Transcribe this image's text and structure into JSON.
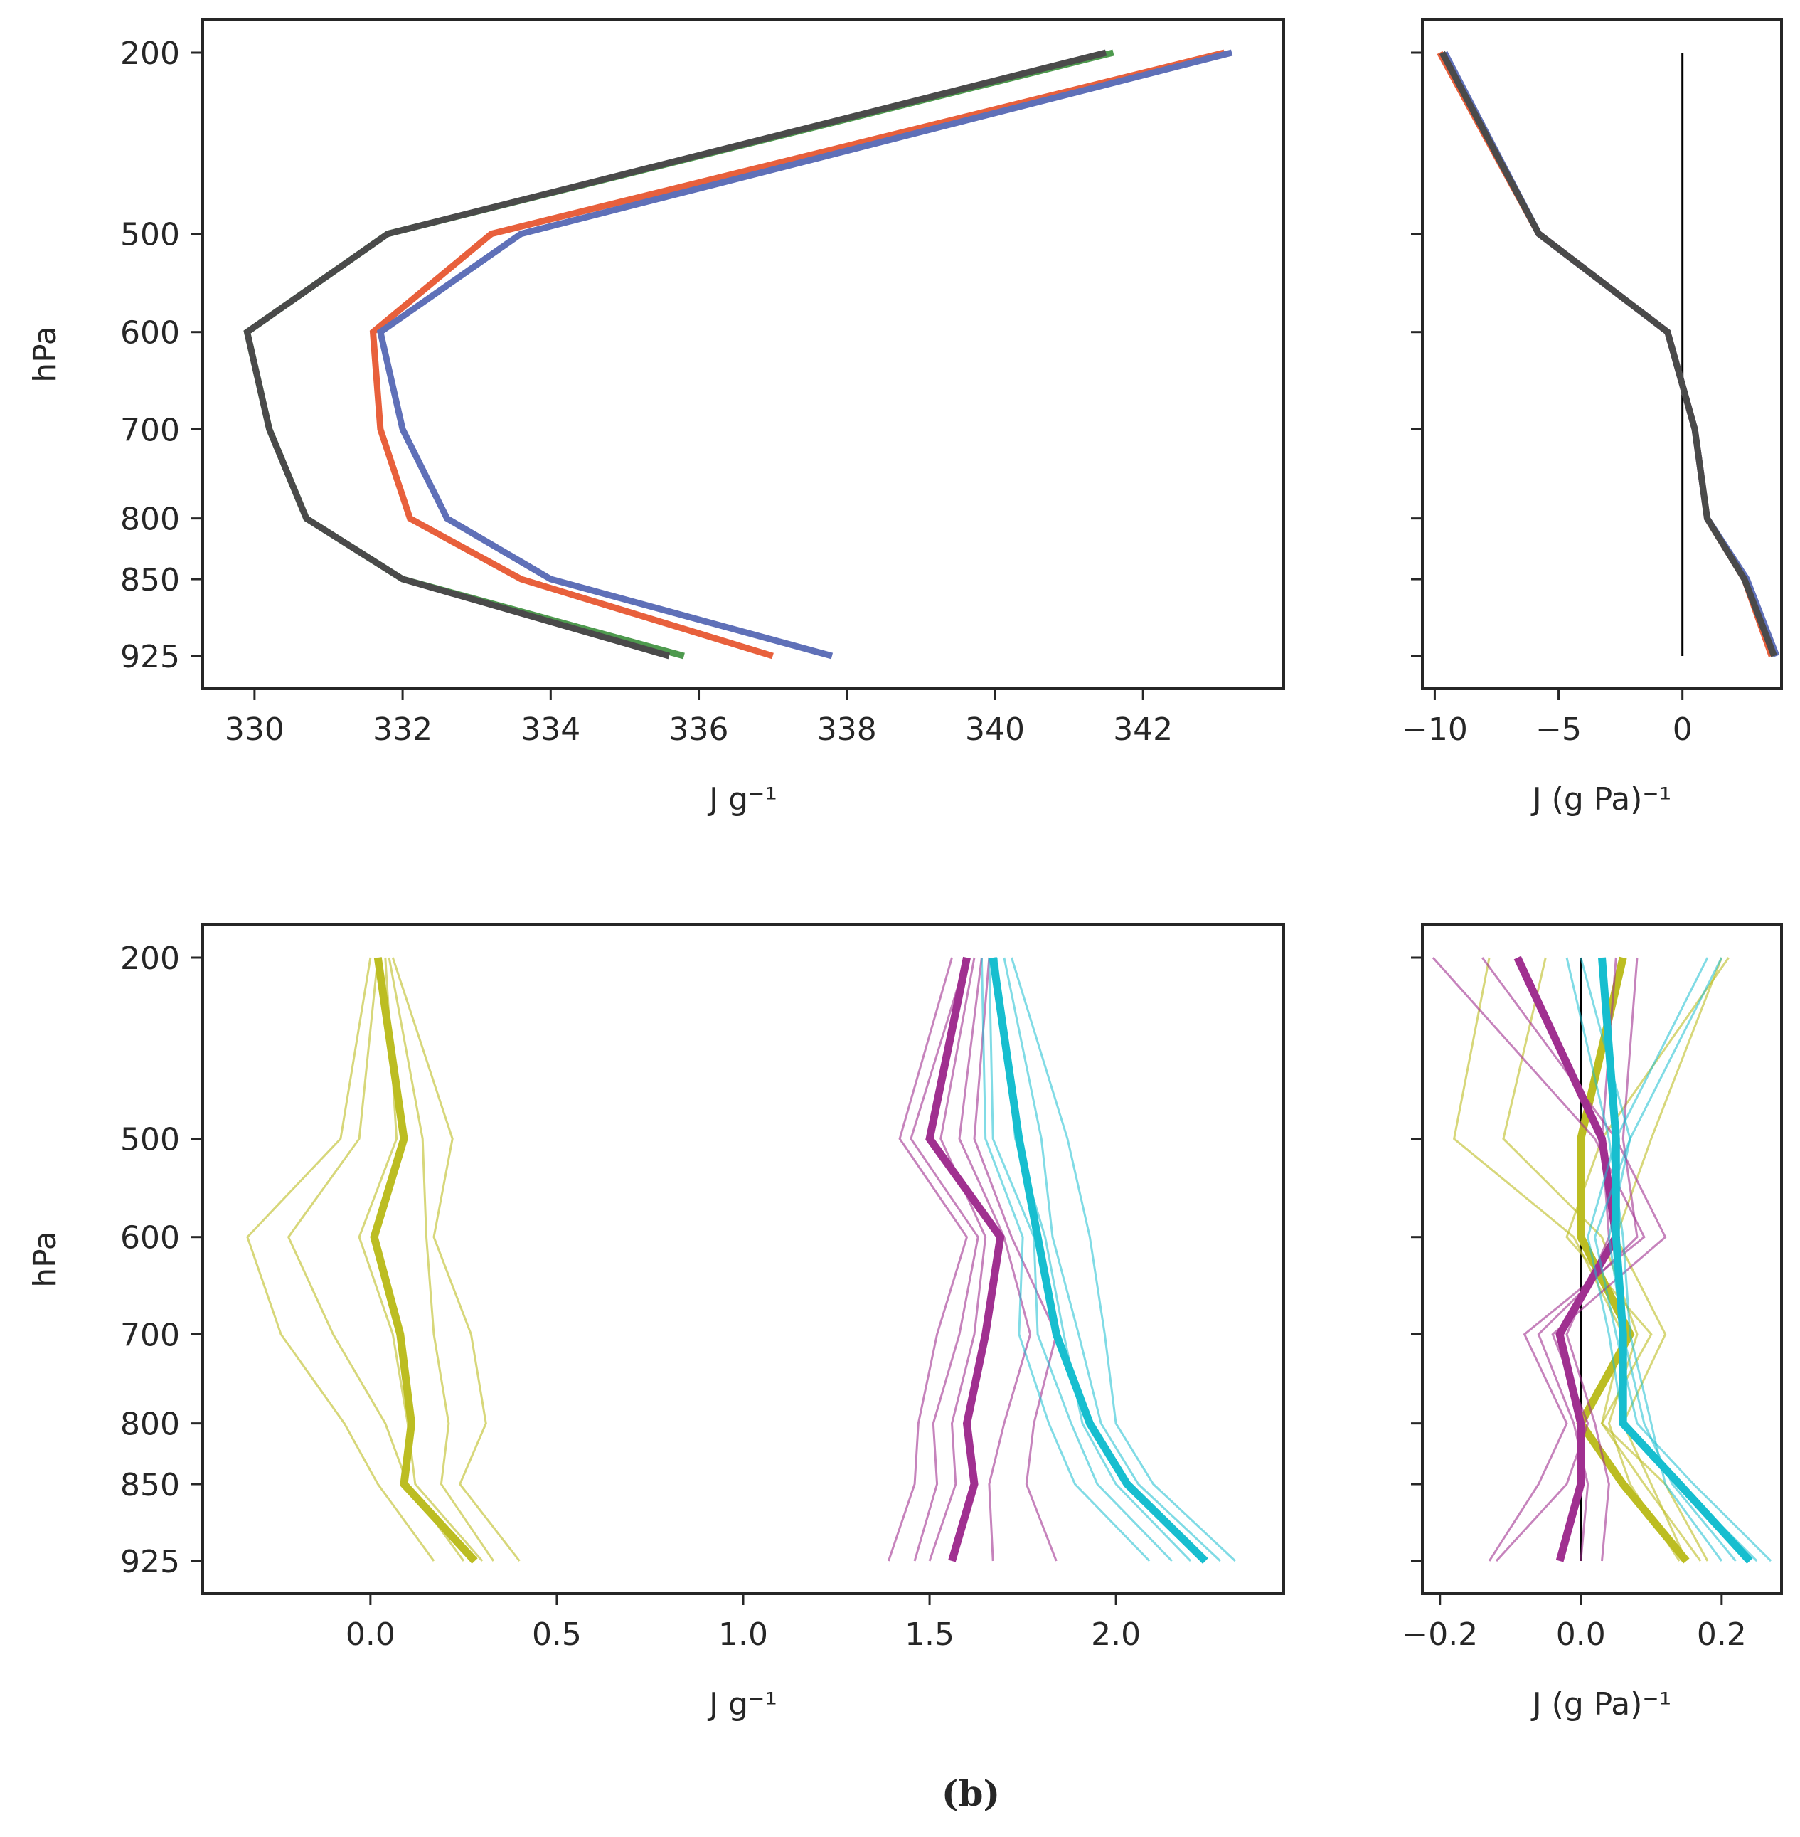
{
  "caption": "(b)",
  "colors": {
    "red": "#e8603c",
    "blue": "#5f70b8",
    "green": "#4e9a4e",
    "darkgray": "#4a4a4a",
    "yellow": "#bcbd22",
    "magenta": "#a03090",
    "cyan": "#17becf",
    "axis": "#262626"
  },
  "chart_data": [
    {
      "id": "top_left",
      "type": "line",
      "ylabel": "hPa",
      "xlabel": "J g⁻¹",
      "xlim": [
        329.3,
        343.9
      ],
      "ylim": [
        925,
        200
      ],
      "xticks": [
        330,
        332,
        334,
        336,
        338,
        340,
        342
      ],
      "xtick_labels": [
        "330",
        "332",
        "334",
        "336",
        "338",
        "340",
        "342"
      ],
      "yticks": [
        200,
        500,
        600,
        700,
        800,
        850,
        925
      ],
      "ytick_labels": [
        "200",
        "500",
        "600",
        "700",
        "800",
        "850",
        "925"
      ],
      "levels": [
        200,
        500,
        600,
        700,
        800,
        850,
        925
      ],
      "series": [
        {
          "name": "red",
          "color": "#e8603c",
          "width": 9,
          "values": [
            343.1,
            333.2,
            331.6,
            331.7,
            332.1,
            333.6,
            337.0
          ]
        },
        {
          "name": "blue",
          "color": "#5f70b8",
          "width": 9,
          "values": [
            343.2,
            333.6,
            331.7,
            332.0,
            332.6,
            334.0,
            337.8
          ]
        },
        {
          "name": "green",
          "color": "#4e9a4e",
          "width": 9,
          "values": [
            341.6,
            331.8,
            329.9,
            330.2,
            330.7,
            332.0,
            335.8
          ]
        },
        {
          "name": "darkgray",
          "color": "#4a4a4a",
          "width": 9,
          "values": [
            341.5,
            331.8,
            329.9,
            330.2,
            330.7,
            332.0,
            335.6
          ]
        }
      ]
    },
    {
      "id": "top_right",
      "type": "line",
      "xlabel": "J (g Pa)⁻¹",
      "xlim": [
        -10.5,
        4.0
      ],
      "ylim": [
        925,
        200
      ],
      "xticks": [
        -10,
        -5,
        0
      ],
      "xtick_labels": [
        "−10",
        "−5",
        "0"
      ],
      "yticks": [
        200,
        500,
        600,
        700,
        800,
        850,
        925
      ],
      "levels": [
        200,
        500,
        600,
        700,
        800,
        850,
        925
      ],
      "zero_line": 0,
      "series": [
        {
          "name": "red",
          "color": "#e8603c",
          "width": 9,
          "values": [
            -9.8,
            -5.8,
            -0.6,
            0.5,
            1.0,
            2.5,
            3.6
          ]
        },
        {
          "name": "blue",
          "color": "#5f70b8",
          "width": 9,
          "values": [
            -9.6,
            -5.8,
            -0.6,
            0.5,
            1.0,
            2.6,
            3.8
          ]
        },
        {
          "name": "darkgray",
          "color": "#4a4a4a",
          "width": 9,
          "values": [
            -9.7,
            -5.8,
            -0.6,
            0.5,
            1.0,
            2.5,
            3.7
          ]
        }
      ]
    },
    {
      "id": "bottom_left",
      "type": "line",
      "ylabel": "hPa",
      "xlabel": "J g⁻¹",
      "xlim": [
        -0.45,
        2.45
      ],
      "ylim": [
        925,
        200
      ],
      "xticks": [
        0.0,
        0.5,
        1.0,
        1.5,
        2.0
      ],
      "xtick_labels": [
        "0.0",
        "0.5",
        "1.0",
        "1.5",
        "2.0"
      ],
      "yticks": [
        200,
        500,
        600,
        700,
        800,
        850,
        925
      ],
      "ytick_labels": [
        "200",
        "500",
        "600",
        "700",
        "800",
        "850",
        "925"
      ],
      "levels": [
        200,
        500,
        600,
        700,
        800,
        850,
        925
      ],
      "series": [
        {
          "name": "yellow-member-1",
          "color": "#bcbd22",
          "width": 3,
          "opacity": 0.6,
          "values": [
            0.0,
            -0.08,
            -0.33,
            -0.24,
            -0.07,
            0.02,
            0.17
          ]
        },
        {
          "name": "yellow-member-2",
          "color": "#bcbd22",
          "width": 3,
          "opacity": 0.6,
          "values": [
            0.02,
            -0.03,
            -0.22,
            -0.1,
            0.04,
            0.1,
            0.25
          ]
        },
        {
          "name": "yellow-member-3",
          "color": "#bcbd22",
          "width": 3,
          "opacity": 0.6,
          "values": [
            0.04,
            0.07,
            -0.03,
            0.06,
            0.1,
            0.12,
            0.3
          ]
        },
        {
          "name": "yellow-member-4",
          "color": "#bcbd22",
          "width": 3,
          "opacity": 0.6,
          "values": [
            0.05,
            0.14,
            0.15,
            0.17,
            0.21,
            0.19,
            0.33
          ]
        },
        {
          "name": "yellow-member-5",
          "color": "#bcbd22",
          "width": 3,
          "opacity": 0.6,
          "values": [
            0.06,
            0.22,
            0.17,
            0.27,
            0.31,
            0.24,
            0.4
          ]
        },
        {
          "name": "yellow-mean",
          "color": "#bcbd22",
          "width": 11,
          "values": [
            0.02,
            0.09,
            0.01,
            0.08,
            0.11,
            0.09,
            0.28
          ]
        },
        {
          "name": "magenta-member-1",
          "color": "#a03090",
          "width": 3,
          "opacity": 0.6,
          "values": [
            1.56,
            1.42,
            1.6,
            1.52,
            1.47,
            1.46,
            1.39
          ]
        },
        {
          "name": "magenta-member-2",
          "color": "#a03090",
          "width": 3,
          "opacity": 0.6,
          "values": [
            1.6,
            1.45,
            1.63,
            1.58,
            1.51,
            1.52,
            1.46
          ]
        },
        {
          "name": "magenta-member-3",
          "color": "#a03090",
          "width": 3,
          "opacity": 0.6,
          "values": [
            1.62,
            1.53,
            1.65,
            1.62,
            1.56,
            1.57,
            1.5
          ]
        },
        {
          "name": "magenta-member-4",
          "color": "#a03090",
          "width": 3,
          "opacity": 0.6,
          "values": [
            1.64,
            1.58,
            1.7,
            1.77,
            1.7,
            1.66,
            1.67
          ]
        },
        {
          "name": "magenta-member-5",
          "color": "#a03090",
          "width": 3,
          "opacity": 0.6,
          "values": [
            1.66,
            1.62,
            1.72,
            1.84,
            1.78,
            1.76,
            1.84
          ]
        },
        {
          "name": "magenta-mean",
          "color": "#a03090",
          "width": 11,
          "values": [
            1.6,
            1.5,
            1.69,
            1.65,
            1.6,
            1.62,
            1.56
          ]
        },
        {
          "name": "cyan-member-1",
          "color": "#17becf",
          "width": 3,
          "opacity": 0.55,
          "values": [
            1.64,
            1.65,
            1.75,
            1.74,
            1.82,
            1.89,
            2.09
          ]
        },
        {
          "name": "cyan-member-2",
          "color": "#17becf",
          "width": 3,
          "opacity": 0.55,
          "values": [
            1.66,
            1.67,
            1.78,
            1.79,
            1.88,
            1.95,
            2.15
          ]
        },
        {
          "name": "cyan-member-3",
          "color": "#17becf",
          "width": 3,
          "opacity": 0.55,
          "values": [
            1.68,
            1.73,
            1.81,
            1.86,
            1.91,
            2.0,
            2.2
          ]
        },
        {
          "name": "cyan-member-4",
          "color": "#17becf",
          "width": 3,
          "opacity": 0.55,
          "values": [
            1.7,
            1.8,
            1.83,
            1.9,
            1.96,
            2.06,
            2.28
          ]
        },
        {
          "name": "cyan-member-5",
          "color": "#17becf",
          "width": 3,
          "opacity": 0.55,
          "values": [
            1.72,
            1.87,
            1.93,
            1.97,
            2.0,
            2.1,
            2.32
          ]
        },
        {
          "name": "cyan-mean",
          "color": "#17becf",
          "width": 11,
          "values": [
            1.67,
            1.74,
            1.79,
            1.84,
            1.93,
            2.03,
            2.24
          ]
        }
      ]
    },
    {
      "id": "bottom_right",
      "type": "line",
      "xlabel": "J (g Pa)⁻¹",
      "xlim": [
        -0.225,
        0.285
      ],
      "ylim": [
        925,
        200
      ],
      "xticks": [
        -0.2,
        0.0,
        0.2
      ],
      "xtick_labels": [
        "−0.2",
        "0.0",
        "0.2"
      ],
      "yticks": [
        200,
        500,
        600,
        700,
        800,
        850,
        925
      ],
      "levels": [
        200,
        500,
        600,
        700,
        800,
        850,
        925
      ],
      "zero_line": 0,
      "series": [
        {
          "name": "yellow-member-1",
          "color": "#bcbd22",
          "width": 3,
          "opacity": 0.6,
          "values": [
            -0.13,
            -0.18,
            -0.01,
            0.06,
            0.03,
            0.09,
            0.17
          ]
        },
        {
          "name": "yellow-member-2",
          "color": "#bcbd22",
          "width": 3,
          "opacity": 0.6,
          "values": [
            -0.05,
            -0.11,
            0.03,
            0.08,
            0.04,
            0.07,
            0.14
          ]
        },
        {
          "name": "yellow-member-3",
          "color": "#bcbd22",
          "width": 3,
          "opacity": 0.6,
          "values": [
            0.21,
            0.03,
            -0.02,
            0.1,
            0.03,
            0.12,
            0.18
          ]
        },
        {
          "name": "yellow-member-4",
          "color": "#bcbd22",
          "width": 3,
          "opacity": 0.6,
          "values": [
            0.2,
            0.1,
            0.05,
            0.12,
            0.06,
            0.1,
            0.15
          ]
        },
        {
          "name": "yellow-mean",
          "color": "#bcbd22",
          "width": 11,
          "values": [
            0.06,
            0.0,
            0.0,
            0.07,
            0.0,
            0.06,
            0.15
          ]
        },
        {
          "name": "magenta-member-1",
          "color": "#a03090",
          "width": 3,
          "opacity": 0.6,
          "values": [
            -0.21,
            0.02,
            0.09,
            -0.08,
            -0.02,
            -0.06,
            -0.13
          ]
        },
        {
          "name": "magenta-member-2",
          "color": "#a03090",
          "width": 3,
          "opacity": 0.6,
          "values": [
            -0.14,
            0.05,
            0.12,
            -0.04,
            0.01,
            -0.02,
            -0.12
          ]
        },
        {
          "name": "magenta-member-3",
          "color": "#a03090",
          "width": 3,
          "opacity": 0.6,
          "values": [
            0.08,
            0.06,
            0.08,
            -0.06,
            -0.01,
            0.01,
            0.0
          ]
        },
        {
          "name": "magenta-member-4",
          "color": "#a03090",
          "width": 3,
          "opacity": 0.6,
          "values": [
            0.05,
            0.03,
            0.04,
            -0.02,
            0.02,
            0.04,
            0.03
          ]
        },
        {
          "name": "magenta-mean",
          "color": "#a03090",
          "width": 11,
          "values": [
            -0.09,
            0.03,
            0.05,
            -0.03,
            0.0,
            0.0,
            -0.03
          ]
        },
        {
          "name": "cyan-member-1",
          "color": "#17becf",
          "width": 3,
          "opacity": 0.55,
          "values": [
            0.2,
            0.07,
            0.02,
            0.05,
            0.08,
            0.16,
            0.27
          ]
        },
        {
          "name": "cyan-member-2",
          "color": "#17becf",
          "width": 3,
          "opacity": 0.55,
          "values": [
            0.18,
            0.05,
            0.01,
            0.04,
            0.06,
            0.14,
            0.25
          ]
        },
        {
          "name": "cyan-member-3",
          "color": "#17becf",
          "width": 3,
          "opacity": 0.55,
          "values": [
            -0.02,
            0.04,
            0.06,
            0.07,
            0.1,
            0.12,
            0.2
          ]
        },
        {
          "name": "cyan-member-4",
          "color": "#17becf",
          "width": 3,
          "opacity": 0.55,
          "values": [
            0.0,
            0.07,
            0.04,
            0.06,
            0.09,
            0.13,
            0.22
          ]
        },
        {
          "name": "cyan-mean",
          "color": "#17becf",
          "width": 11,
          "values": [
            0.03,
            0.05,
            0.05,
            0.06,
            0.06,
            0.14,
            0.24
          ]
        }
      ]
    }
  ]
}
